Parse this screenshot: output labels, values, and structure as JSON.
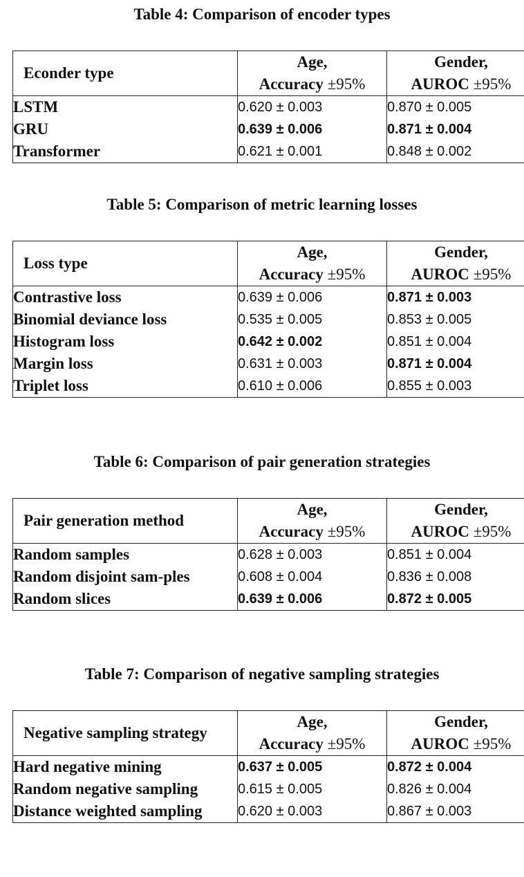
{
  "tables": [
    {
      "caption": "Table 4: Comparison of encoder types",
      "header": {
        "col1": "Econder type",
        "col2_line1": "Age,",
        "col2_line2_bold": "Accuracy",
        "col2_line2_rest": " ±95%",
        "col3_line1": "Gender,",
        "col3_line2_bold": "AUROC",
        "col3_line2_rest": " ±95%"
      },
      "rows": [
        {
          "name": "LSTM",
          "age": "0.620 ± 0.003",
          "gender": "0.870 ± 0.005"
        },
        {
          "name": "GRU",
          "age": "0.639 ± 0.006",
          "gender": "0.871 ± 0.004"
        },
        {
          "name": "Transformer",
          "age": "0.621 ± 0.001",
          "gender": "0.848 ± 0.002"
        }
      ]
    },
    {
      "caption": "Table 5: Comparison of metric learning losses",
      "header": {
        "col1": "Loss type",
        "col2_line1": "Age,",
        "col2_line2_bold": "Accuracy",
        "col2_line2_rest": " ±95%",
        "col3_line1": "Gender,",
        "col3_line2_bold": "AUROC",
        "col3_line2_rest": " ±95%"
      },
      "rows": [
        {
          "name": "Contrastive loss",
          "age": "0.639 ± 0.006",
          "gender": "0.871 ± 0.003"
        },
        {
          "name": "Binomial deviance loss",
          "age": "0.535 ± 0.005",
          "gender": "0.853 ± 0.005"
        },
        {
          "name": "Histogram loss",
          "age": "0.642 ± 0.002",
          "gender": "0.851 ± 0.004"
        },
        {
          "name": "Margin loss",
          "age": "0.631 ± 0.003",
          "gender": "0.871 ± 0.004"
        },
        {
          "name": "Triplet loss",
          "age": "0.610 ± 0.006",
          "gender": "0.855 ± 0.003"
        }
      ]
    },
    {
      "caption": "Table 6: Comparison of pair generation strategies",
      "header": {
        "col1": "Pair generation method",
        "col2_line1": "Age,",
        "col2_line2_bold": "Accuracy",
        "col2_line2_rest": " ±95%",
        "col3_line1": "Gender,",
        "col3_line2_bold": "AUROC",
        "col3_line2_rest": " ±95%"
      },
      "rows": [
        {
          "name": "Random samples",
          "age": "0.628 ± 0.003",
          "gender": "0.851 ± 0.004"
        },
        {
          "name": "Random disjoint sam-ples",
          "age": "0.608 ± 0.004",
          "gender": "0.836 ± 0.008"
        },
        {
          "name": "Random slices",
          "age": "0.639 ± 0.006",
          "gender": "0.872 ± 0.005"
        }
      ]
    },
    {
      "caption": "Table 7: Comparison of negative sampling strategies",
      "header": {
        "col1": "Negative sampling strategy",
        "col2_line1": "Age,",
        "col2_line2_bold": "Accuracy",
        "col2_line2_rest": " ±95%",
        "col3_line1": "Gender,",
        "col3_line2_bold": "AUROC",
        "col3_line2_rest": " ±95%"
      },
      "rows": [
        {
          "name": "Hard negative mining",
          "age": "0.637 ± 0.005",
          "gender": "0.872 ± 0.004"
        },
        {
          "name": "Random negative sampling",
          "age": "0.615 ± 0.005",
          "gender": "0.826 ± 0.004"
        },
        {
          "name": "Distance weighted sampling",
          "age": "0.620 ± 0.003",
          "gender": "0.867 ± 0.003"
        }
      ]
    }
  ]
}
